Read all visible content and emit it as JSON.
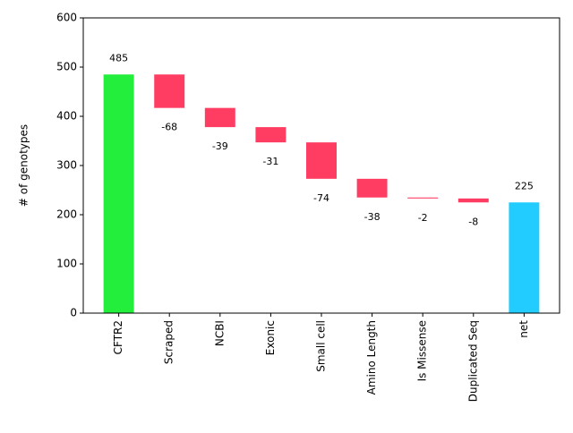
{
  "chart_data": {
    "type": "waterfall",
    "y_label": "# of genotypes",
    "categories": [
      "CFTR2",
      "Scraped",
      "NCBI",
      "Exonic",
      "Small cell",
      "Amino Length",
      "Is Missense",
      "Duplicated Seq",
      "net"
    ],
    "values": [
      485,
      -68,
      -39,
      -31,
      -74,
      -38,
      -2,
      -8,
      225
    ],
    "last_is_total": true,
    "colors": {
      "increase": "#22ee3b",
      "decrease": "#ff3d63",
      "total": "#22ccff"
    },
    "label_colors": {
      "positive": "#008000",
      "negative": "#ff0000"
    },
    "ylim": [
      0,
      600
    ],
    "yticks": [
      0,
      100,
      200,
      300,
      400,
      500,
      600
    ]
  }
}
